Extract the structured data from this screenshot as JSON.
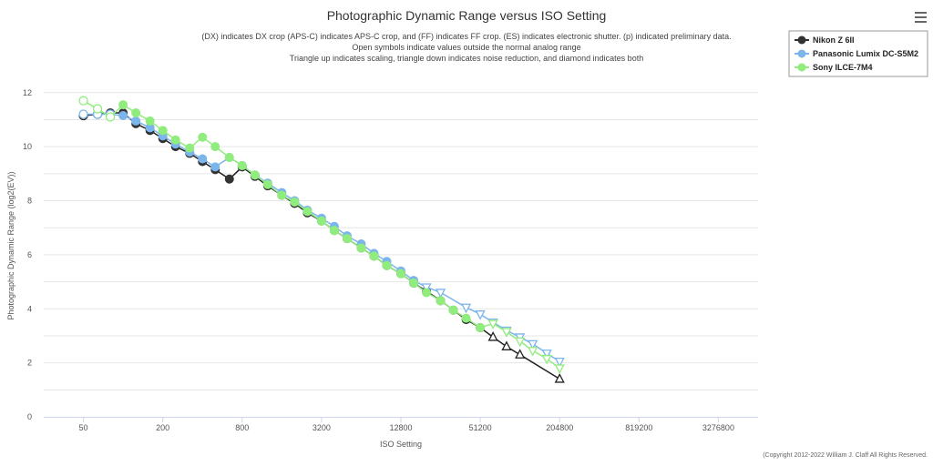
{
  "menu_icon": "hamburger-menu-icon",
  "copyright": "(Copyright 2012-2022 William J. Claff All Rights Reserved.",
  "chart_data": {
    "type": "line",
    "title": "Photographic Dynamic Range versus ISO Setting",
    "subtitle_lines": [
      "(DX) indicates DX crop (APS-C) indicates APS-C crop, and (FF) indicates FF crop. (ES) indicates electronic shutter. (p) indicated preliminary data.",
      "Open symbols indicate values outside the normal analog range",
      "Triangle up indicates scaling, triangle down indicates noise reduction, and diamond indicates both"
    ],
    "xlabel": "ISO Setting",
    "ylabel": "Photographic Dynamic Range (log2(EV))",
    "x_scale": "log2",
    "x_ticks": [
      50,
      200,
      800,
      3200,
      12800,
      51200,
      204800,
      819200,
      3276800
    ],
    "x_range": [
      25,
      6553600
    ],
    "y_ticks": [
      0,
      2,
      4,
      6,
      8,
      10,
      12
    ],
    "ylim": [
      0,
      12.8
    ],
    "grid": "horizontal",
    "legend_position": "top-right",
    "series": [
      {
        "name": "Nikon Z 6II",
        "color": "#333333",
        "points": [
          {
            "x": 50,
            "y": 11.15,
            "m": "open-circle"
          },
          {
            "x": 64,
            "y": 11.2,
            "m": "open-circle"
          },
          {
            "x": 80,
            "y": 11.25,
            "m": "circle"
          },
          {
            "x": 100,
            "y": 11.25,
            "m": "circle"
          },
          {
            "x": 125,
            "y": 10.85,
            "m": "circle"
          },
          {
            "x": 160,
            "y": 10.6,
            "m": "circle"
          },
          {
            "x": 200,
            "y": 10.3,
            "m": "circle"
          },
          {
            "x": 250,
            "y": 10.0,
            "m": "circle"
          },
          {
            "x": 320,
            "y": 9.75,
            "m": "circle"
          },
          {
            "x": 400,
            "y": 9.45,
            "m": "circle"
          },
          {
            "x": 500,
            "y": 9.15,
            "m": "circle"
          },
          {
            "x": 640,
            "y": 8.8,
            "m": "circle"
          },
          {
            "x": 800,
            "y": 9.25,
            "m": "circle"
          },
          {
            "x": 1000,
            "y": 8.9,
            "m": "circle"
          },
          {
            "x": 1250,
            "y": 8.55,
            "m": "circle"
          },
          {
            "x": 1600,
            "y": 8.2,
            "m": "circle"
          },
          {
            "x": 2000,
            "y": 7.9,
            "m": "circle"
          },
          {
            "x": 2500,
            "y": 7.55,
            "m": "circle"
          },
          {
            "x": 3200,
            "y": 7.25,
            "m": "circle"
          },
          {
            "x": 4000,
            "y": 6.9,
            "m": "circle"
          },
          {
            "x": 5000,
            "y": 6.6,
            "m": "circle"
          },
          {
            "x": 6400,
            "y": 6.25,
            "m": "circle"
          },
          {
            "x": 8000,
            "y": 5.95,
            "m": "circle"
          },
          {
            "x": 10000,
            "y": 5.6,
            "m": "circle"
          },
          {
            "x": 12800,
            "y": 5.3,
            "m": "circle"
          },
          {
            "x": 16000,
            "y": 4.95,
            "m": "circle"
          },
          {
            "x": 20000,
            "y": 4.65,
            "m": "circle"
          },
          {
            "x": 25600,
            "y": 4.3,
            "m": "circle"
          },
          {
            "x": 32000,
            "y": 3.95,
            "m": "circle"
          },
          {
            "x": 40000,
            "y": 3.6,
            "m": "circle"
          },
          {
            "x": 51200,
            "y": 3.3,
            "m": "circle"
          },
          {
            "x": 64000,
            "y": 2.95,
            "m": "open-triangle-up"
          },
          {
            "x": 81000,
            "y": 2.6,
            "m": "open-triangle-up"
          },
          {
            "x": 102400,
            "y": 2.3,
            "m": "open-triangle-up"
          },
          {
            "x": 204800,
            "y": 1.4,
            "m": "open-triangle-up"
          }
        ]
      },
      {
        "name": "Panasonic Lumix DC-S5M2",
        "color": "#7cb5ec",
        "points": [
          {
            "x": 50,
            "y": 11.2,
            "m": "open-circle"
          },
          {
            "x": 64,
            "y": 11.2,
            "m": "open-circle"
          },
          {
            "x": 80,
            "y": 11.2,
            "m": "open-circle"
          },
          {
            "x": 100,
            "y": 11.15,
            "m": "circle"
          },
          {
            "x": 125,
            "y": 10.95,
            "m": "circle"
          },
          {
            "x": 160,
            "y": 10.7,
            "m": "circle"
          },
          {
            "x": 200,
            "y": 10.4,
            "m": "circle"
          },
          {
            "x": 250,
            "y": 10.1,
            "m": "circle"
          },
          {
            "x": 320,
            "y": 9.8,
            "m": "circle"
          },
          {
            "x": 400,
            "y": 9.55,
            "m": "circle"
          },
          {
            "x": 500,
            "y": 9.25,
            "m": "circle"
          },
          {
            "x": 640,
            "y": 9.6,
            "m": "circle"
          },
          {
            "x": 800,
            "y": 9.3,
            "m": "circle"
          },
          {
            "x": 1000,
            "y": 8.95,
            "m": "circle"
          },
          {
            "x": 1250,
            "y": 8.65,
            "m": "circle"
          },
          {
            "x": 1600,
            "y": 8.3,
            "m": "circle"
          },
          {
            "x": 2000,
            "y": 8.0,
            "m": "circle"
          },
          {
            "x": 2500,
            "y": 7.65,
            "m": "circle"
          },
          {
            "x": 3200,
            "y": 7.35,
            "m": "circle"
          },
          {
            "x": 4000,
            "y": 7.05,
            "m": "circle"
          },
          {
            "x": 5000,
            "y": 6.7,
            "m": "circle"
          },
          {
            "x": 6400,
            "y": 6.4,
            "m": "circle"
          },
          {
            "x": 8000,
            "y": 6.05,
            "m": "circle"
          },
          {
            "x": 10000,
            "y": 5.75,
            "m": "circle"
          },
          {
            "x": 12800,
            "y": 5.4,
            "m": "circle"
          },
          {
            "x": 16000,
            "y": 5.05,
            "m": "circle"
          },
          {
            "x": 20000,
            "y": 4.8,
            "m": "open-triangle-down"
          },
          {
            "x": 25600,
            "y": 4.6,
            "m": "open-triangle-down"
          },
          {
            "x": 40000,
            "y": 4.05,
            "m": "open-triangle-down"
          },
          {
            "x": 51200,
            "y": 3.8,
            "m": "open-triangle-down"
          },
          {
            "x": 64000,
            "y": 3.5,
            "m": "open-triangle-down"
          },
          {
            "x": 81000,
            "y": 3.2,
            "m": "open-triangle-down"
          },
          {
            "x": 102400,
            "y": 2.95,
            "m": "open-triangle-down"
          },
          {
            "x": 128000,
            "y": 2.7,
            "m": "open-triangle-down"
          },
          {
            "x": 163840,
            "y": 2.35,
            "m": "open-triangle-down"
          },
          {
            "x": 204800,
            "y": 2.05,
            "m": "open-triangle-down"
          }
        ]
      },
      {
        "name": "Sony ILCE-7M4",
        "color": "#90ed7d",
        "points": [
          {
            "x": 50,
            "y": 11.7,
            "m": "open-circle"
          },
          {
            "x": 64,
            "y": 11.4,
            "m": "open-circle"
          },
          {
            "x": 80,
            "y": 11.1,
            "m": "open-circle"
          },
          {
            "x": 100,
            "y": 11.55,
            "m": "circle"
          },
          {
            "x": 125,
            "y": 11.25,
            "m": "circle"
          },
          {
            "x": 160,
            "y": 10.95,
            "m": "circle"
          },
          {
            "x": 200,
            "y": 10.6,
            "m": "circle"
          },
          {
            "x": 250,
            "y": 10.25,
            "m": "circle"
          },
          {
            "x": 320,
            "y": 9.95,
            "m": "circle"
          },
          {
            "x": 400,
            "y": 10.35,
            "m": "circle"
          },
          {
            "x": 500,
            "y": 10.0,
            "m": "circle"
          },
          {
            "x": 640,
            "y": 9.6,
            "m": "circle"
          },
          {
            "x": 800,
            "y": 9.3,
            "m": "circle"
          },
          {
            "x": 1000,
            "y": 8.95,
            "m": "circle"
          },
          {
            "x": 1250,
            "y": 8.6,
            "m": "circle"
          },
          {
            "x": 1600,
            "y": 8.2,
            "m": "circle"
          },
          {
            "x": 2000,
            "y": 7.95,
            "m": "circle"
          },
          {
            "x": 2500,
            "y": 7.6,
            "m": "circle"
          },
          {
            "x": 3200,
            "y": 7.25,
            "m": "circle"
          },
          {
            "x": 4000,
            "y": 6.9,
            "m": "circle"
          },
          {
            "x": 5000,
            "y": 6.6,
            "m": "circle"
          },
          {
            "x": 6400,
            "y": 6.25,
            "m": "circle"
          },
          {
            "x": 8000,
            "y": 5.95,
            "m": "circle"
          },
          {
            "x": 10000,
            "y": 5.6,
            "m": "circle"
          },
          {
            "x": 12800,
            "y": 5.3,
            "m": "circle"
          },
          {
            "x": 16000,
            "y": 4.95,
            "m": "circle"
          },
          {
            "x": 20000,
            "y": 4.6,
            "m": "circle"
          },
          {
            "x": 25600,
            "y": 4.3,
            "m": "circle"
          },
          {
            "x": 32000,
            "y": 3.95,
            "m": "circle"
          },
          {
            "x": 40000,
            "y": 3.65,
            "m": "circle"
          },
          {
            "x": 51200,
            "y": 3.3,
            "m": "circle"
          },
          {
            "x": 64000,
            "y": 3.45,
            "m": "open-triangle-down"
          },
          {
            "x": 81000,
            "y": 3.15,
            "m": "open-triangle-down"
          },
          {
            "x": 102400,
            "y": 2.8,
            "m": "open-triangle-down"
          },
          {
            "x": 128000,
            "y": 2.45,
            "m": "open-triangle-down"
          },
          {
            "x": 163840,
            "y": 2.15,
            "m": "open-triangle-down"
          },
          {
            "x": 204800,
            "y": 1.8,
            "m": "open-triangle-down"
          }
        ]
      }
    ]
  }
}
